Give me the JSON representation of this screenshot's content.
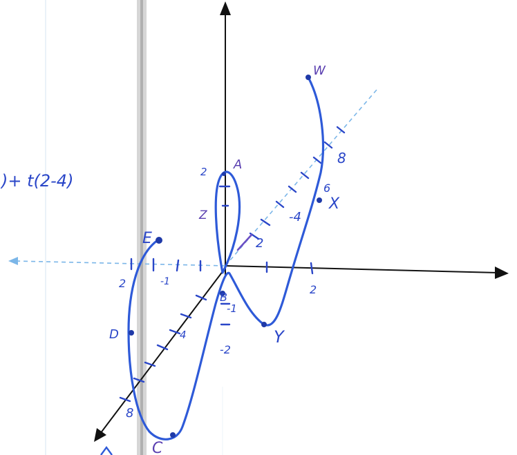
{
  "formula_fragment": ")+ t(2-4)",
  "point_labels": {
    "A": "A",
    "B": "B",
    "C": "C",
    "D": "D",
    "E": "E",
    "W": "W",
    "X": "X",
    "Y": "Y",
    "Z": "Z"
  },
  "axis_numbers": {
    "z_pos": "2",
    "z_neg1": "-1",
    "z_neg2": "-2",
    "x_pos": "2",
    "x_neg1": "-1",
    "x_neg2": "2",
    "y_2": "2",
    "y_4": "4",
    "y_8": "8",
    "y_neg2": "-2",
    "y_neg4": "-4",
    "y_6": "6",
    "y_8b": "8"
  },
  "colors": {
    "ink": "#2e5ad8",
    "axis": "#111111",
    "dashed_axis": "#7bb6e8",
    "page_margin": "#c9c9c9"
  }
}
